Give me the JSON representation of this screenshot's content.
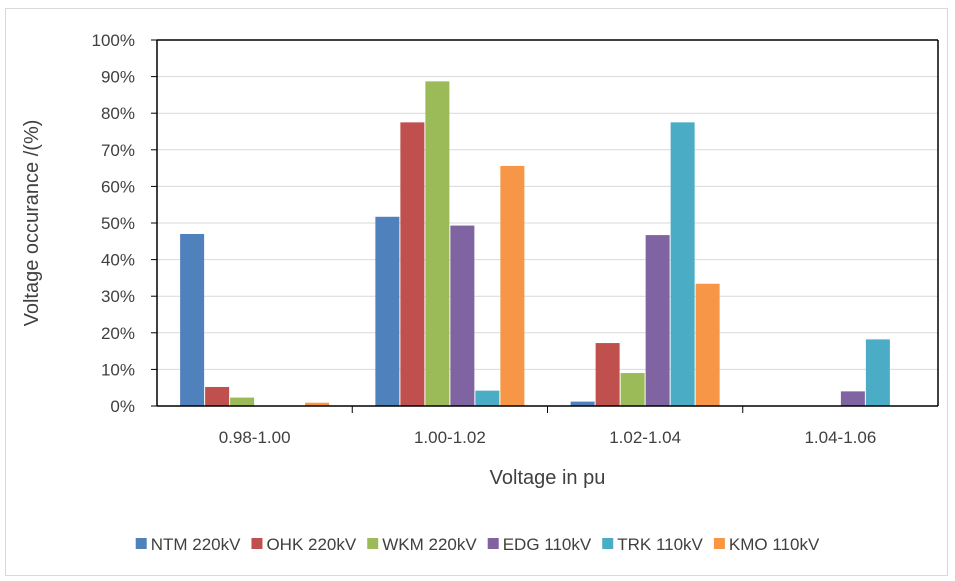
{
  "chart_data": {
    "type": "bar",
    "title": "",
    "xlabel": "Voltage in pu",
    "ylabel": "Voltage occurance /(%)",
    "categories": [
      "0.98-1.00",
      "1.00-1.02",
      "1.02-1.04",
      "1.04-1.06"
    ],
    "ylim": [
      0,
      100
    ],
    "yticks": [
      0,
      10,
      20,
      30,
      40,
      50,
      60,
      70,
      80,
      90,
      100
    ],
    "ytick_labels": [
      "0%",
      "10%",
      "20%",
      "30%",
      "40%",
      "50%",
      "60%",
      "70%",
      "80%",
      "90%",
      "100%"
    ],
    "grid": "horizontal",
    "legend_position": "bottom",
    "series": [
      {
        "name": "NTM 220kV",
        "color": "#4f81bd",
        "values": [
          47,
          51.7,
          1.2,
          0
        ]
      },
      {
        "name": "OHK 220kV",
        "color": "#c0504d",
        "values": [
          5.2,
          77.5,
          17.2,
          0
        ]
      },
      {
        "name": "WKM 220kV",
        "color": "#9bbb59",
        "values": [
          2.3,
          88.7,
          9,
          0
        ]
      },
      {
        "name": "EDG 110kV",
        "color": "#8064a2",
        "values": [
          0,
          49.3,
          46.7,
          4
        ]
      },
      {
        "name": "TRK 110kV",
        "color": "#4bacc6",
        "values": [
          0,
          4.2,
          77.5,
          18.2
        ]
      },
      {
        "name": "KMO 110kV",
        "color": "#f79646",
        "values": [
          0.9,
          65.6,
          33.4,
          0
        ]
      }
    ]
  }
}
